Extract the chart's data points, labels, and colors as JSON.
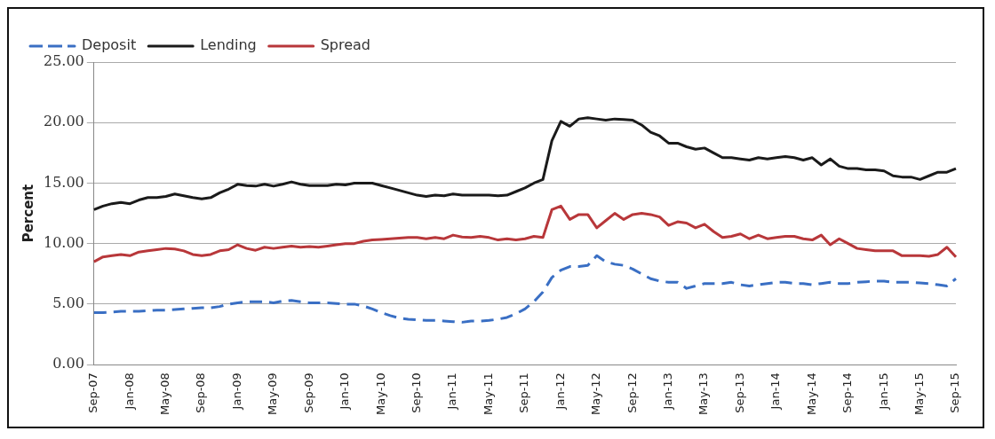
{
  "chart_data": {
    "type": "line",
    "ylabel": "Percent",
    "categories": [
      "Sep-07",
      null,
      null,
      null,
      "Jan-08",
      null,
      null,
      null,
      "May-08",
      null,
      null,
      null,
      "Sep-08",
      null,
      null,
      null,
      "Jan-09",
      null,
      null,
      null,
      "May-09",
      null,
      null,
      null,
      "Sep-09",
      null,
      null,
      null,
      "Jan-10",
      null,
      null,
      null,
      "May-10",
      null,
      null,
      null,
      "Sep-10",
      null,
      null,
      null,
      "Jan-11",
      null,
      null,
      null,
      "May-11",
      null,
      null,
      null,
      "Sep-11",
      null,
      null,
      null,
      "Jan-12",
      null,
      null,
      null,
      "May-12",
      null,
      null,
      null,
      "Sep-12",
      null,
      null,
      null,
      "Jan-13",
      null,
      null,
      null,
      "May-13",
      null,
      null,
      null,
      "Sep-13",
      null,
      null,
      null,
      "Jan-14",
      null,
      null,
      null,
      "May-14",
      null,
      null,
      null,
      "Sep-14",
      null,
      null,
      null,
      "Jan-15",
      null,
      null,
      null,
      "May-15",
      null,
      null,
      null,
      "Sep-15"
    ],
    "series": [
      {
        "name": "Deposit",
        "color": "#3a6fc4",
        "line_style": "dashed",
        "values": [
          4.3,
          4.3,
          4.35,
          4.4,
          4.4,
          4.4,
          4.45,
          4.5,
          4.5,
          4.55,
          4.6,
          4.65,
          4.7,
          4.7,
          4.8,
          5.0,
          5.1,
          5.2,
          5.2,
          5.2,
          5.1,
          5.25,
          5.3,
          5.2,
          5.1,
          5.1,
          5.1,
          5.05,
          5.0,
          5.0,
          4.85,
          4.6,
          4.3,
          4.05,
          3.85,
          3.75,
          3.7,
          3.65,
          3.65,
          3.6,
          3.55,
          3.5,
          3.6,
          3.6,
          3.65,
          3.75,
          3.9,
          4.2,
          4.6,
          5.2,
          6.0,
          7.2,
          7.8,
          8.1,
          8.1,
          8.2,
          9.0,
          8.5,
          8.3,
          8.2,
          7.9,
          7.5,
          7.1,
          6.9,
          6.8,
          6.8,
          6.3,
          6.5,
          6.7,
          6.7,
          6.7,
          6.8,
          6.6,
          6.5,
          6.6,
          6.7,
          6.8,
          6.8,
          6.7,
          6.7,
          6.6,
          6.7,
          6.8,
          6.7,
          6.7,
          6.8,
          6.85,
          6.9,
          6.9,
          6.8,
          6.8,
          6.8,
          6.75,
          6.7,
          6.6,
          6.5,
          7.1
        ]
      },
      {
        "name": "Lending",
        "color": "#1a1a1a",
        "line_style": "solid",
        "values": [
          12.8,
          13.1,
          13.3,
          13.4,
          13.3,
          13.6,
          13.8,
          13.8,
          13.9,
          14.1,
          13.95,
          13.8,
          13.7,
          13.8,
          14.2,
          14.5,
          14.9,
          14.8,
          14.75,
          14.9,
          14.75,
          14.9,
          15.1,
          14.9,
          14.8,
          14.8,
          14.8,
          14.9,
          14.85,
          15.0,
          15.0,
          15.0,
          14.8,
          14.6,
          14.4,
          14.2,
          14.0,
          13.9,
          14.0,
          13.95,
          14.1,
          14.0,
          14.0,
          14.0,
          14.0,
          13.95,
          14.0,
          14.3,
          14.6,
          15.0,
          15.3,
          18.5,
          20.1,
          19.7,
          20.3,
          20.4,
          20.3,
          20.2,
          20.3,
          20.25,
          20.2,
          19.8,
          19.2,
          18.9,
          18.3,
          18.3,
          18.0,
          17.8,
          17.9,
          17.5,
          17.1,
          17.1,
          17.0,
          16.9,
          17.1,
          17.0,
          17.1,
          17.2,
          17.1,
          16.9,
          17.1,
          16.5,
          17.0,
          16.4,
          16.2,
          16.2,
          16.1,
          16.1,
          16.0,
          15.6,
          15.5,
          15.5,
          15.3,
          15.6,
          15.9,
          15.9,
          16.2
        ]
      },
      {
        "name": "Spread",
        "color": "#b8373a",
        "line_style": "solid",
        "values": [
          8.5,
          8.9,
          9.0,
          9.1,
          9.0,
          9.3,
          9.4,
          9.5,
          9.6,
          9.55,
          9.4,
          9.1,
          9.0,
          9.1,
          9.4,
          9.5,
          9.9,
          9.6,
          9.45,
          9.7,
          9.6,
          9.7,
          9.8,
          9.7,
          9.75,
          9.7,
          9.8,
          9.9,
          10.0,
          10.0,
          10.2,
          10.3,
          10.35,
          10.4,
          10.45,
          10.5,
          10.5,
          10.4,
          10.5,
          10.4,
          10.7,
          10.55,
          10.5,
          10.6,
          10.5,
          10.3,
          10.4,
          10.3,
          10.4,
          10.6,
          10.5,
          12.8,
          13.1,
          12.0,
          12.4,
          12.4,
          11.3,
          11.9,
          12.5,
          12.0,
          12.4,
          12.5,
          12.4,
          12.2,
          11.5,
          11.8,
          11.7,
          11.3,
          11.6,
          11.0,
          10.5,
          10.6,
          10.8,
          10.4,
          10.7,
          10.4,
          10.5,
          10.6,
          10.6,
          10.4,
          10.3,
          10.7,
          9.9,
          10.4,
          10.0,
          9.6,
          9.5,
          9.4,
          9.4,
          9.4,
          9.0,
          9.0,
          9.0,
          8.95,
          9.1,
          9.7,
          8.9
        ]
      }
    ],
    "ylim": [
      0,
      25
    ],
    "yticks": [
      {
        "value": 0,
        "label": "0.00"
      },
      {
        "value": 5,
        "label": "5.00"
      },
      {
        "value": 10,
        "label": "10.00"
      },
      {
        "value": 15,
        "label": "15.00"
      },
      {
        "value": 20,
        "label": "20.00"
      },
      {
        "value": 25,
        "label": "25.00"
      }
    ],
    "grid": "y",
    "legend": "top left",
    "marker": "none"
  }
}
